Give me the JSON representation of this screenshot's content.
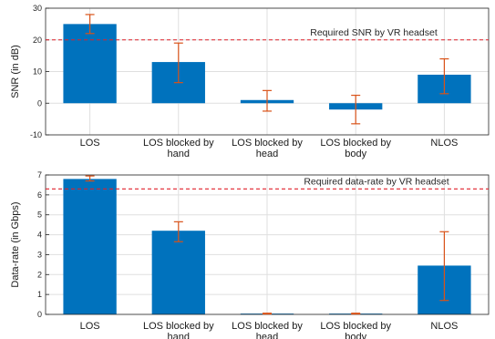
{
  "chart_data": [
    {
      "type": "bar",
      "ylabel": "SNR (in dB)",
      "ylim": [
        -10,
        30
      ],
      "yticks": [
        -10,
        0,
        10,
        20,
        30
      ],
      "grid": true,
      "categories": [
        [
          "LOS"
        ],
        [
          "LOS blocked by",
          "hand"
        ],
        [
          "LOS blocked by",
          "head"
        ],
        [
          "LOS blocked by",
          "body"
        ],
        [
          "NLOS"
        ]
      ],
      "values": [
        25,
        13,
        1,
        -2,
        9
      ],
      "error_low": [
        22,
        6.5,
        -2.5,
        -6.5,
        3
      ],
      "error_high": [
        28,
        19,
        4,
        2.5,
        14
      ],
      "reference": {
        "y": 20,
        "label": "Required SNR by VR headset"
      },
      "bar_color": "#0072BD",
      "error_color": "#D95319",
      "reference_color": "#E0202A"
    },
    {
      "type": "bar",
      "ylabel": "Data-rate (in Gbps)",
      "ylim": [
        0,
        7
      ],
      "yticks": [
        0,
        1,
        2,
        3,
        4,
        5,
        6,
        7
      ],
      "grid": true,
      "categories": [
        [
          "LOS"
        ],
        [
          "LOS blocked by",
          "hand"
        ],
        [
          "LOS blocked by",
          "head"
        ],
        [
          "LOS blocked by",
          "body"
        ],
        [
          "NLOS"
        ]
      ],
      "values": [
        6.8,
        4.2,
        0.04,
        0.04,
        2.45
      ],
      "error_low": [
        6.7,
        3.65,
        0.02,
        0.02,
        0.7
      ],
      "error_high": [
        6.95,
        4.65,
        0.06,
        0.06,
        4.15
      ],
      "reference": {
        "y": 6.3,
        "label": "Required data-rate by VR headset"
      },
      "bar_color": "#0072BD",
      "error_color": "#D95319",
      "reference_color": "#E0202A"
    }
  ]
}
